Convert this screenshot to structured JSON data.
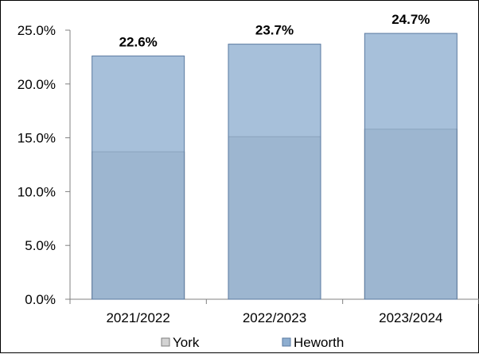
{
  "chart_data": {
    "type": "bar",
    "overlap": "overlaid",
    "categories": [
      "2021/2022",
      "2022/2023",
      "2023/2024"
    ],
    "series": [
      {
        "name": "York",
        "values": [
          13.7,
          15.1,
          15.8
        ],
        "color": "#d3d3d3",
        "show_labels": false
      },
      {
        "name": "Heworth",
        "values": [
          22.6,
          23.7,
          24.7
        ],
        "color": "#8eaed0",
        "show_labels": true,
        "labels": [
          "22.6%",
          "23.7%",
          "24.7%"
        ]
      }
    ],
    "ylim": [
      0,
      25
    ],
    "yticks": [
      "0.0%",
      "5.0%",
      "10.0%",
      "15.0%",
      "20.0%",
      "25.0%"
    ],
    "grid": false,
    "legend": "bottom"
  }
}
